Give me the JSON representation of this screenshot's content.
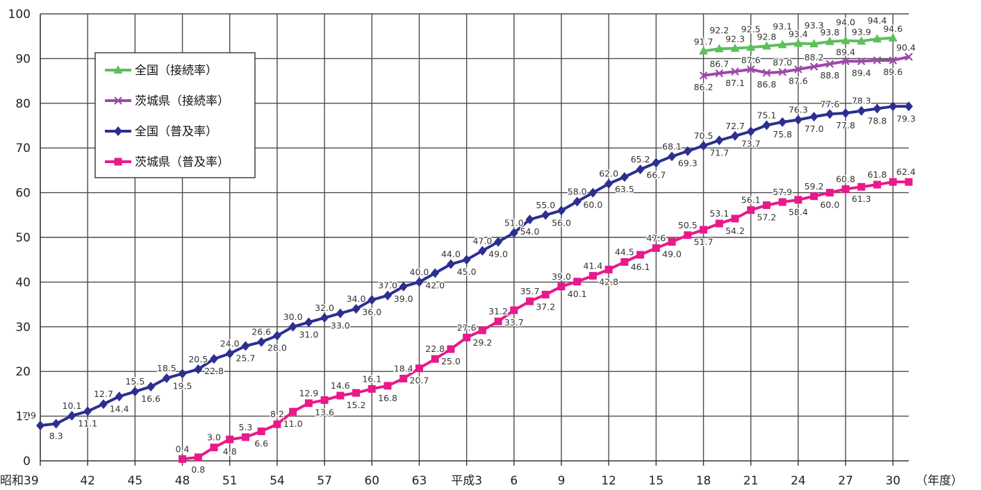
{
  "chart_data": {
    "type": "line",
    "xlabel": "（年度）",
    "ylabel": "",
    "ylim": [
      0,
      100
    ],
    "y_ticks": [
      "0",
      "10",
      "20",
      "30",
      "40",
      "50",
      "60",
      "70",
      "80",
      "90",
      "100"
    ],
    "x_tick_labels": [
      "昭和39",
      "42",
      "45",
      "48",
      "51",
      "54",
      "57",
      "60",
      "63",
      "平成3",
      "6",
      "9",
      "12",
      "15",
      "18",
      "21",
      "24",
      "27",
      "30"
    ],
    "grid": true,
    "legend_position": "upper-left",
    "series": [
      {
        "name": "全国（接続率）",
        "color": "#5cbf5c",
        "marker": "triangle",
        "x": [
          17,
          18,
          19,
          20,
          21,
          22,
          23,
          24,
          25,
          26,
          27,
          28,
          29
        ],
        "values": [
          91.7,
          92.2,
          92.3,
          92.5,
          92.8,
          93.1,
          93.4,
          93.3,
          93.8,
          94.0,
          93.9,
          94.4,
          94.6
        ],
        "labels": [
          "91.7",
          "92.2",
          "92.3",
          "92.5",
          "92.8",
          "93.1",
          "93.4",
          "93.3",
          "93.8",
          "94.0",
          "93.9",
          "94.4",
          "94.6"
        ]
      },
      {
        "name": "茨城県（接続率）",
        "color": "#9b4aa6",
        "marker": "x",
        "x": [
          17,
          18,
          19,
          20,
          21,
          22,
          23,
          24,
          25,
          26,
          27,
          28,
          29,
          30
        ],
        "values": [
          86.2,
          86.7,
          87.1,
          87.6,
          86.8,
          87.0,
          87.6,
          88.2,
          88.8,
          89.4,
          89.4,
          89.6,
          89.6,
          90.4
        ],
        "labels": [
          "86.2",
          "86.7",
          "87.1",
          "87.6",
          "86.8",
          "87.0",
          "87.6",
          "88.2",
          "88.8",
          "89.4",
          "89.4",
          "",
          "89.6",
          "90.4"
        ]
      },
      {
        "name": "全国（普及率）",
        "color": "#2b2f8f",
        "marker": "diamond",
        "x": [
          -25,
          -24,
          -23,
          -22,
          -21,
          -20,
          -19,
          -18,
          -17,
          -16,
          -15,
          -14,
          -13,
          -12,
          -11,
          -10,
          -9,
          -8,
          -7,
          -6,
          -5,
          -4,
          -3,
          -2,
          -1,
          0,
          1,
          2,
          3,
          4,
          5,
          6,
          7,
          8,
          9,
          10,
          11,
          12,
          13,
          14,
          15,
          16,
          17,
          18,
          19,
          20,
          21,
          22,
          23,
          24,
          25,
          26,
          27,
          28,
          29,
          30
        ],
        "values": [
          7.9,
          8.3,
          10.1,
          11.1,
          12.7,
          14.4,
          15.5,
          16.6,
          18.5,
          19.5,
          20.5,
          22.8,
          24.0,
          25.7,
          26.6,
          28.0,
          30.0,
          31.0,
          32.0,
          33.0,
          34.0,
          36.0,
          37.0,
          39.0,
          40.0,
          42.0,
          44.0,
          45.0,
          47.0,
          49.0,
          51.0,
          54.0,
          55.0,
          56.0,
          58.0,
          60.0,
          62.0,
          63.5,
          65.2,
          66.7,
          68.1,
          69.3,
          70.5,
          71.7,
          72.7,
          73.7,
          75.1,
          75.8,
          76.3,
          77.0,
          77.6,
          77.8,
          78.3,
          78.8,
          79.3,
          79.3
        ],
        "labels": [
          "7.9",
          "8.3",
          "10.1",
          "11.1",
          "12.7",
          "14.4",
          "15.5",
          "16.6",
          "18.5",
          "19.5",
          "20.5",
          "22.8",
          "24.0",
          "25.7",
          "26.6",
          "28.0",
          "30.0",
          "31.0",
          "32.0",
          "33.0",
          "34.0",
          "36.0",
          "37.0",
          "39.0",
          "40.0",
          "42.0",
          "44.0",
          "45.0",
          "47.0",
          "49.0",
          "51.0",
          "54.0",
          "55.0",
          "56.0",
          "58.0",
          "60.0",
          "62.0",
          "63.5",
          "65.2",
          "66.7",
          "68.1",
          "69.3",
          "70.5",
          "71.7",
          "72.7",
          "73.7",
          "75.1",
          "75.8",
          "76.3",
          "77.0",
          "77.6",
          "77.8",
          "78.3",
          "78.8",
          "",
          "79.3"
        ]
      },
      {
        "name": "茨城県（普及率）",
        "color": "#e8198b",
        "marker": "square",
        "x": [
          -16,
          -15,
          -14,
          -13,
          -12,
          -11,
          -10,
          -9,
          -8,
          -7,
          -6,
          -5,
          -4,
          -3,
          -2,
          -1,
          0,
          1,
          2,
          3,
          4,
          5,
          6,
          7,
          8,
          9,
          10,
          11,
          12,
          13,
          14,
          15,
          16,
          17,
          18,
          19,
          20,
          21,
          22,
          23,
          24,
          25,
          26,
          27,
          28,
          29,
          30
        ],
        "values": [
          0.4,
          0.8,
          3.0,
          4.8,
          5.3,
          6.6,
          8.2,
          11.0,
          12.9,
          13.6,
          14.6,
          15.2,
          16.1,
          16.8,
          18.4,
          20.7,
          22.8,
          25.0,
          27.6,
          29.2,
          31.2,
          33.7,
          35.7,
          37.2,
          39.0,
          40.1,
          41.4,
          42.8,
          44.5,
          46.1,
          47.6,
          49.0,
          50.5,
          51.7,
          53.1,
          54.2,
          56.1,
          57.2,
          57.9,
          58.4,
          59.2,
          60.0,
          60.8,
          61.3,
          61.8,
          62.4,
          62.4
        ],
        "labels": [
          "0.4",
          "0.8",
          "3.0",
          "4.8",
          "5.3",
          "6.6",
          "8.2",
          "11.0",
          "12.9",
          "13.6",
          "14.6",
          "15.2",
          "16.1",
          "16.8",
          "18.4",
          "20.7",
          "22.8",
          "25.0",
          "27.6",
          "29.2",
          "31.2",
          "33.7",
          "35.7",
          "37.2",
          "39.0",
          "40.1",
          "41.4",
          "42.8",
          "44.5",
          "46.1",
          "47.6",
          "49.0",
          "50.5",
          "51.7",
          "53.1",
          "54.2",
          "56.1",
          "57.2",
          "57.9",
          "58.4",
          "59.2",
          "60.0",
          "60.8",
          "61.3",
          "61.8",
          "",
          "62.4"
        ]
      }
    ]
  }
}
